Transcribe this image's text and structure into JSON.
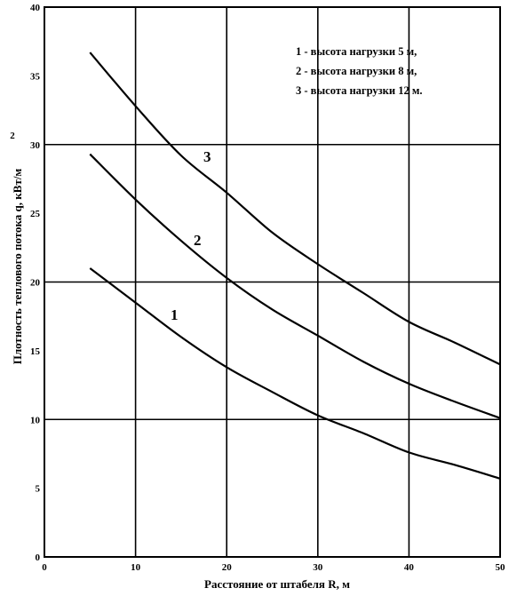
{
  "chart_data": {
    "type": "line",
    "xlabel": "Расстояние от штабеля R, м",
    "ylabel": "Плотность теплового потока q, кВт/м",
    "ylabel_superscript": "2",
    "xlim": [
      0,
      50
    ],
    "ylim": [
      0,
      40
    ],
    "x_ticks": [
      "0",
      "10",
      "20",
      "30",
      "40",
      "50"
    ],
    "y_ticks": [
      "0",
      "5",
      "10",
      "15",
      "20",
      "25",
      "30",
      "35",
      "40"
    ],
    "grid": true,
    "legend": [
      "1 - высота нагрузки 5 м,",
      "2 - высота нагрузки 8 м,",
      "3 - высота нагрузки 12 м."
    ],
    "legend_position": "top-right",
    "series": [
      {
        "name": "1",
        "x": [
          5,
          10,
          15,
          20,
          25,
          30,
          35,
          40,
          45,
          50
        ],
        "y": [
          21.0,
          18.5,
          16.0,
          13.8,
          12.0,
          10.3,
          9.0,
          7.6,
          6.7,
          5.7
        ]
      },
      {
        "name": "2",
        "x": [
          5,
          10,
          15,
          20,
          25,
          30,
          35,
          40,
          45,
          50
        ],
        "y": [
          29.3,
          26.0,
          23.0,
          20.3,
          18.0,
          16.1,
          14.2,
          12.6,
          11.3,
          10.1
        ]
      },
      {
        "name": "3",
        "x": [
          5,
          10,
          15,
          20,
          25,
          30,
          35,
          40,
          45,
          50
        ],
        "y": [
          36.7,
          32.8,
          29.2,
          26.5,
          23.6,
          21.3,
          19.2,
          17.1,
          15.6,
          14.0
        ]
      }
    ]
  }
}
